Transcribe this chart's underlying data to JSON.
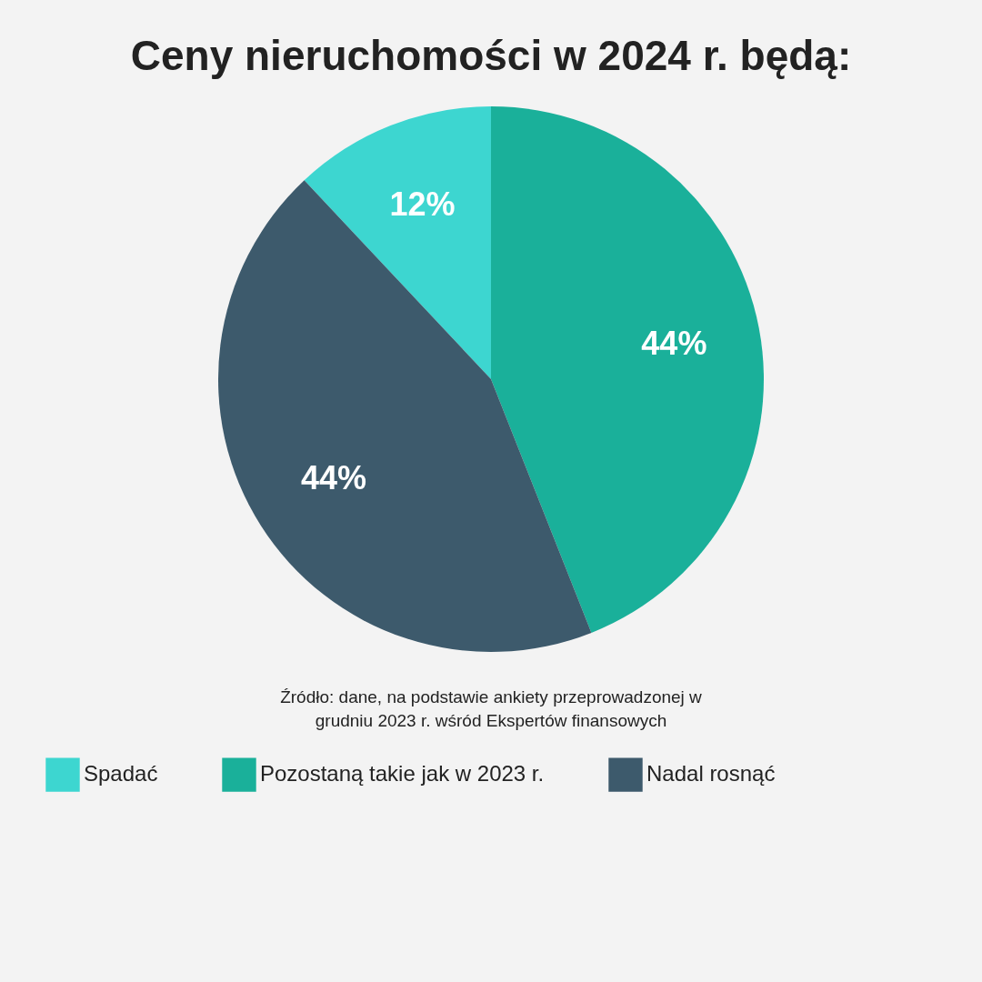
{
  "chart_data": {
    "type": "pie",
    "title": "Ceny nieruchomości w 2024 r. będą:",
    "categories": [
      "Spadać",
      "Pozostaną takie jak w 2023 r.",
      "Nadal rosnąć"
    ],
    "values": [
      12,
      44,
      44
    ],
    "colors": [
      "#3dd6d0",
      "#1ab09a",
      "#3d5a6c"
    ],
    "value_labels": [
      "12%",
      "44%",
      "44%"
    ],
    "legend": "bottom",
    "annotations": [
      "Źródło: dane, na podstawie ankiety przeprowadzonej w grudniu 2023 r. wśród Ekspertów finansowych"
    ]
  }
}
